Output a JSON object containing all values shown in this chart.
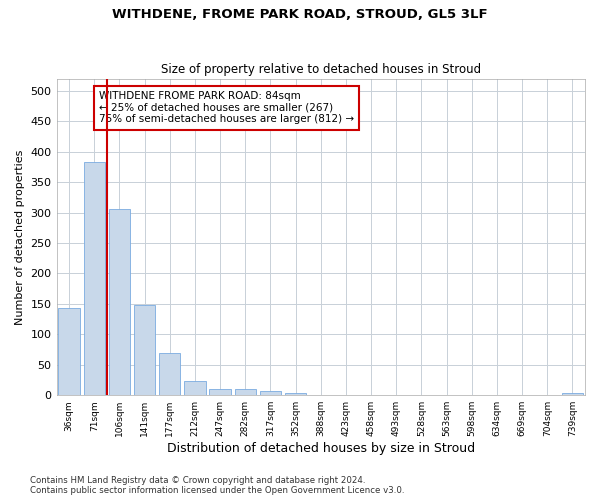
{
  "title1": "WITHDENE, FROME PARK ROAD, STROUD, GL5 3LF",
  "title2": "Size of property relative to detached houses in Stroud",
  "xlabel": "Distribution of detached houses by size in Stroud",
  "ylabel": "Number of detached properties",
  "bar_labels": [
    "36sqm",
    "71sqm",
    "106sqm",
    "141sqm",
    "177sqm",
    "212sqm",
    "247sqm",
    "282sqm",
    "317sqm",
    "352sqm",
    "388sqm",
    "423sqm",
    "458sqm",
    "493sqm",
    "528sqm",
    "563sqm",
    "598sqm",
    "634sqm",
    "669sqm",
    "704sqm",
    "739sqm"
  ],
  "bar_values": [
    143,
    383,
    305,
    148,
    70,
    24,
    10,
    10,
    7,
    3,
    1,
    0,
    0,
    0,
    0,
    0,
    0,
    0,
    0,
    0,
    3
  ],
  "bar_color": "#c8d8ea",
  "bar_edge_color": "#7aabe0",
  "vline_x": 1.5,
  "vline_color": "#cc0000",
  "annotation_text": "WITHDENE FROME PARK ROAD: 84sqm\n← 25% of detached houses are smaller (267)\n75% of semi-detached houses are larger (812) →",
  "annotation_box_color": "#ffffff",
  "annotation_box_edge": "#cc0000",
  "ylim": [
    0,
    520
  ],
  "yticks": [
    0,
    50,
    100,
    150,
    200,
    250,
    300,
    350,
    400,
    450,
    500
  ],
  "footnote1": "Contains HM Land Registry data © Crown copyright and database right 2024.",
  "footnote2": "Contains public sector information licensed under the Open Government Licence v3.0.",
  "bg_color": "#ffffff",
  "grid_color": "#c8d0d8",
  "bar_width": 0.85
}
